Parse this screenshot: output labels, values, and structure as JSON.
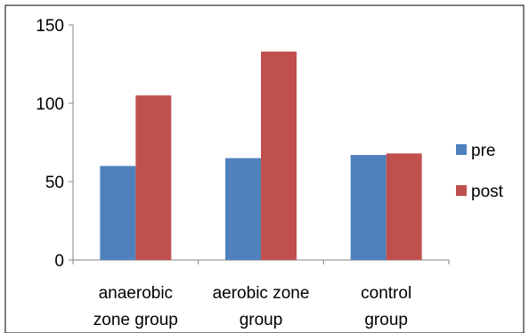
{
  "chart_data": {
    "type": "bar",
    "categories": [
      [
        "anaerobic",
        "zone group"
      ],
      [
        "aerobic zone",
        "group"
      ],
      [
        "control",
        "group"
      ]
    ],
    "series": [
      {
        "name": "pre",
        "color": "#4F81BD",
        "values": [
          60,
          65,
          67
        ]
      },
      {
        "name": "post",
        "color": "#C0504D",
        "values": [
          105,
          133,
          68
        ]
      }
    ],
    "yticks": [
      "0",
      "50",
      "100",
      "150"
    ],
    "ylim": [
      0,
      150
    ],
    "grid": false,
    "legend": "right"
  }
}
